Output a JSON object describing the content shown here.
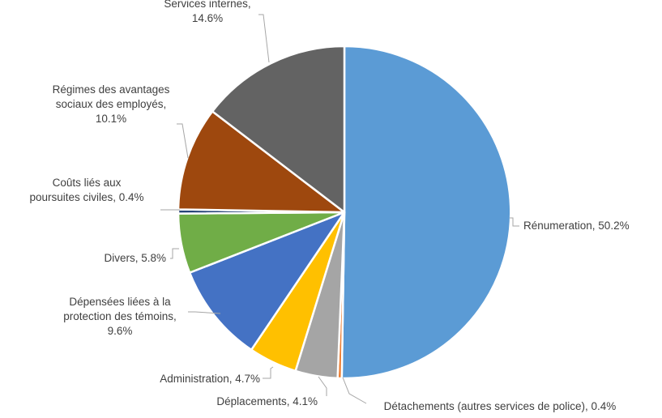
{
  "chart_data": {
    "type": "pie",
    "title": "",
    "slices": [
      {
        "label_lines": [
          "Rénumeration, 50.2%"
        ],
        "value": 50.2,
        "color": "#5B9BD5"
      },
      {
        "label_lines": [
          "Détachements (autres services de police), 0.4%"
        ],
        "value": 0.4,
        "color": "#ED7D31"
      },
      {
        "label_lines": [
          "Déplacements, 4.1%"
        ],
        "value": 4.1,
        "color": "#A5A5A5"
      },
      {
        "label_lines": [
          "Administration, 4.7%"
        ],
        "value": 4.7,
        "color": "#FFC000"
      },
      {
        "label_lines": [
          "Dépensées liées à la",
          "protection des témoins,",
          "9.6%"
        ],
        "value": 9.6,
        "color": "#4472C4"
      },
      {
        "label_lines": [
          "Divers, 5.8%"
        ],
        "value": 5.8,
        "color": "#70AD47"
      },
      {
        "label_lines": [
          "Coûts liés aux",
          "poursuites civiles, 0.4%"
        ],
        "value": 0.4,
        "color": "#264478"
      },
      {
        "label_lines": [
          "Régimes des avantages",
          "sociaux des employés,",
          "10.1%"
        ],
        "value": 10.1,
        "color": "#9E480E"
      },
      {
        "label_lines": [
          "Services internes,",
          "14.6%"
        ],
        "value": 14.6,
        "color": "#636363"
      }
    ],
    "start_angle_deg": 0,
    "direction": "clockwise",
    "legend": "none"
  }
}
